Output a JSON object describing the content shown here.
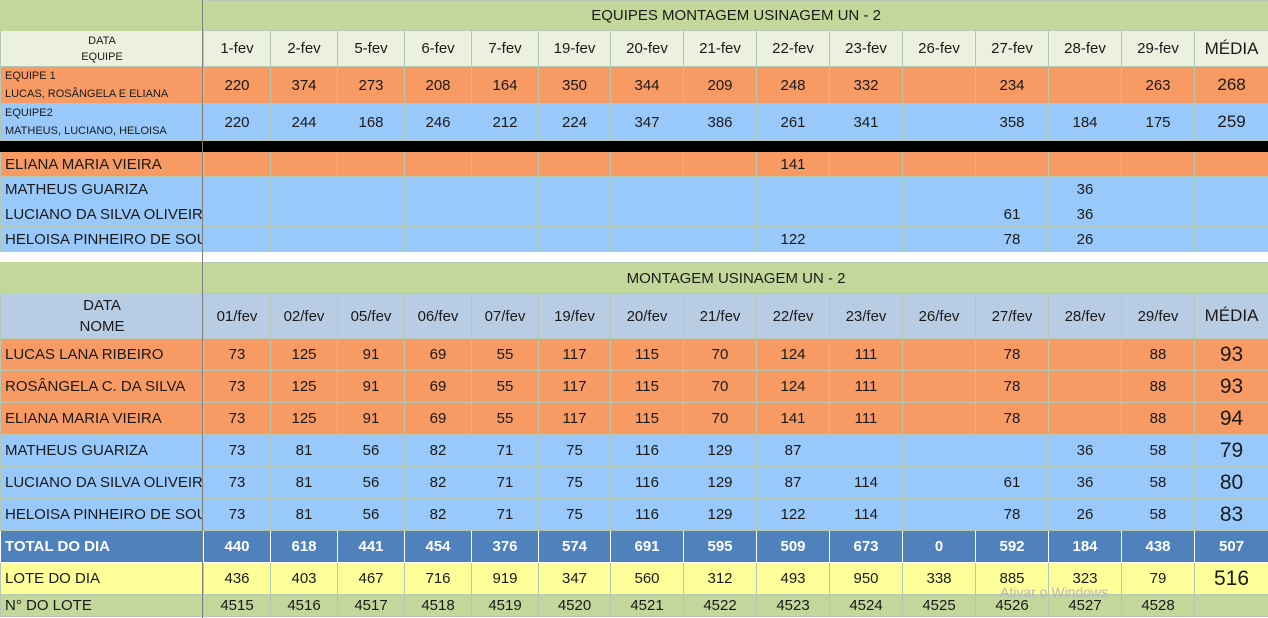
{
  "t1": {
    "title": "EQUIPES MONTAGEM USINAGEM UN - 2",
    "hdr_line1": "DATA",
    "hdr_line2": "EQUIPE",
    "dates": [
      "1-fev",
      "2-fev",
      "5-fev",
      "6-fev",
      "7-fev",
      "19-fev",
      "20-fev",
      "21-fev",
      "22-fev",
      "23-fev",
      "26-fev",
      "27-fev",
      "28-fev",
      "29-fev"
    ],
    "media_label": "MÉDIA",
    "teams": [
      {
        "line1": "EQUIPE 1",
        "line2": "LUCAS, ROSÂNGELA E ELIANA",
        "values": [
          "220",
          "374",
          "273",
          "208",
          "164",
          "350",
          "344",
          "209",
          "248",
          "332",
          "",
          "234",
          "",
          "263"
        ],
        "media": "268"
      },
      {
        "line1": "EQUIPE2",
        "line2": "MATHEUS, LUCIANO, HELOISA",
        "values": [
          "220",
          "244",
          "168",
          "246",
          "212",
          "224",
          "347",
          "386",
          "261",
          "341",
          "",
          "358",
          "184",
          "175"
        ],
        "media": "259"
      }
    ],
    "persons": [
      {
        "name": "ELIANA MARIA VIEIRA",
        "values": [
          "",
          "",
          "",
          "",
          "",
          "",
          "",
          "",
          "141",
          "",
          "",
          "",
          "",
          ""
        ]
      },
      {
        "name": "MATHEUS GUARIZA",
        "values": [
          "",
          "",
          "",
          "",
          "",
          "",
          "",
          "",
          "",
          "",
          "",
          "",
          "36",
          ""
        ]
      },
      {
        "name": "LUCIANO DA SILVA OLIVEIRA",
        "values": [
          "",
          "",
          "",
          "",
          "",
          "",
          "",
          "",
          "",
          "",
          "",
          "61",
          "36",
          ""
        ]
      },
      {
        "name": "HELOISA PINHEIRO DE SOUZA",
        "values": [
          "",
          "",
          "",
          "",
          "",
          "",
          "",
          "",
          "122",
          "",
          "",
          "78",
          "26",
          ""
        ]
      }
    ]
  },
  "t2": {
    "title": "MONTAGEM USINAGEM UN - 2",
    "hdr_line1": "DATA",
    "hdr_line2": "NOME",
    "dates": [
      "01/fev",
      "02/fev",
      "05/fev",
      "06/fev",
      "07/fev",
      "19/fev",
      "20/fev",
      "21/fev",
      "22/fev",
      "23/fev",
      "26/fev",
      "27/fev",
      "28/fev",
      "29/fev"
    ],
    "media_label": "MÉDIA",
    "rows": [
      {
        "name": "LUCAS LANA RIBEIRO",
        "values": [
          "73",
          "125",
          "91",
          "69",
          "55",
          "117",
          "115",
          "70",
          "124",
          "111",
          "",
          "78",
          "",
          "88"
        ],
        "media": "93"
      },
      {
        "name": "ROSÂNGELA C. DA SILVA",
        "values": [
          "73",
          "125",
          "91",
          "69",
          "55",
          "117",
          "115",
          "70",
          "124",
          "111",
          "",
          "78",
          "",
          "88"
        ],
        "media": "93"
      },
      {
        "name": "ELIANA MARIA VIEIRA",
        "values": [
          "73",
          "125",
          "91",
          "69",
          "55",
          "117",
          "115",
          "70",
          "141",
          "111",
          "",
          "78",
          "",
          "88"
        ],
        "media": "94"
      },
      {
        "name": "MATHEUS GUARIZA",
        "values": [
          "73",
          "81",
          "56",
          "82",
          "71",
          "75",
          "116",
          "129",
          "87",
          "",
          "",
          "",
          "36",
          "58"
        ],
        "media": "79"
      },
      {
        "name": "LUCIANO DA SILVA OLIVEIRA",
        "values": [
          "73",
          "81",
          "56",
          "82",
          "71",
          "75",
          "116",
          "129",
          "87",
          "114",
          "",
          "61",
          "36",
          "58"
        ],
        "media": "80"
      },
      {
        "name": "HELOISA PINHEIRO DE SOUZA",
        "values": [
          "73",
          "81",
          "56",
          "82",
          "71",
          "75",
          "116",
          "129",
          "122",
          "114",
          "",
          "78",
          "26",
          "58"
        ],
        "media": "83"
      }
    ],
    "total": {
      "label": "TOTAL DO DIA",
      "values": [
        "440",
        "618",
        "441",
        "454",
        "376",
        "574",
        "691",
        "595",
        "509",
        "673",
        "0",
        "592",
        "184",
        "438"
      ],
      "media": "507"
    },
    "lote": {
      "label": "LOTE DO DIA",
      "values": [
        "436",
        "403",
        "467",
        "716",
        "919",
        "347",
        "560",
        "312",
        "493",
        "950",
        "338",
        "885",
        "323",
        "79"
      ],
      "media": "516"
    },
    "nlote": {
      "label": "N° DO LOTE",
      "values": [
        "4515",
        "4516",
        "4517",
        "4518",
        "4519",
        "4520",
        "4521",
        "4522",
        "4523",
        "4524",
        "4525",
        "4526",
        "4527",
        "4528"
      ],
      "media": ""
    }
  },
  "watermark": "Ativar o Windows",
  "colors": {
    "orange": "#f79a64",
    "blue": "#99c8fa",
    "band": "#c4d79b",
    "total": "#4f81bd",
    "lote": "#ffff99"
  }
}
